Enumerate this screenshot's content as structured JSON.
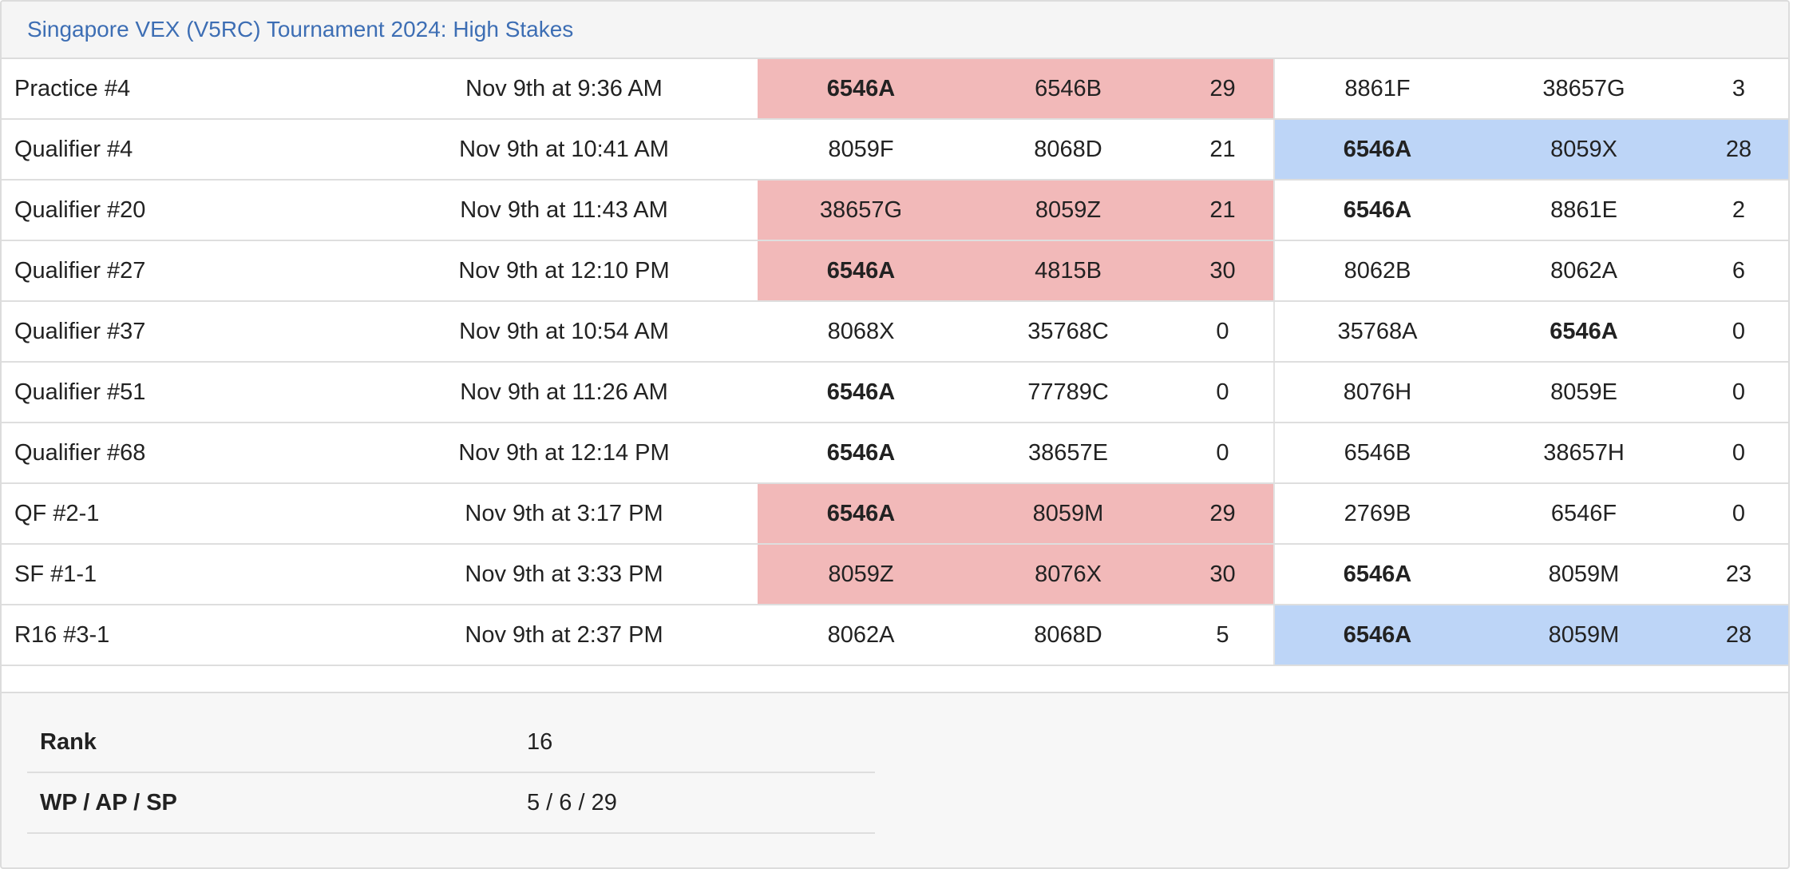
{
  "event": {
    "title": "Singapore VEX (V5RC) Tournament 2024: High Stakes"
  },
  "matches": [
    {
      "name": "Practice #4",
      "time": "Nov 9th at 9:36 AM",
      "red": [
        "6546A",
        "6546B"
      ],
      "red_score": "29",
      "blue": [
        "8861F",
        "38657G"
      ],
      "blue_score": "3",
      "winner": "red"
    },
    {
      "name": "Qualifier #4",
      "time": "Nov 9th at 10:41 AM",
      "red": [
        "8059F",
        "8068D"
      ],
      "red_score": "21",
      "blue": [
        "6546A",
        "8059X"
      ],
      "blue_score": "28",
      "winner": "blue"
    },
    {
      "name": "Qualifier #20",
      "time": "Nov 9th at 11:43 AM",
      "red": [
        "38657G",
        "8059Z"
      ],
      "red_score": "21",
      "blue": [
        "6546A",
        "8861E"
      ],
      "blue_score": "2",
      "winner": "red"
    },
    {
      "name": "Qualifier #27",
      "time": "Nov 9th at 12:10 PM",
      "red": [
        "6546A",
        "4815B"
      ],
      "red_score": "30",
      "blue": [
        "8062B",
        "8062A"
      ],
      "blue_score": "6",
      "winner": "red"
    },
    {
      "name": "Qualifier #37",
      "time": "Nov 9th at 10:54 AM",
      "red": [
        "8068X",
        "35768C"
      ],
      "red_score": "0",
      "blue": [
        "35768A",
        "6546A"
      ],
      "blue_score": "0",
      "winner": "none"
    },
    {
      "name": "Qualifier #51",
      "time": "Nov 9th at 11:26 AM",
      "red": [
        "6546A",
        "77789C"
      ],
      "red_score": "0",
      "blue": [
        "8076H",
        "8059E"
      ],
      "blue_score": "0",
      "winner": "none"
    },
    {
      "name": "Qualifier #68",
      "time": "Nov 9th at 12:14 PM",
      "red": [
        "6546A",
        "38657E"
      ],
      "red_score": "0",
      "blue": [
        "6546B",
        "38657H"
      ],
      "blue_score": "0",
      "winner": "none"
    },
    {
      "name": "QF #2-1",
      "time": "Nov 9th at 3:17 PM",
      "red": [
        "6546A",
        "8059M"
      ],
      "red_score": "29",
      "blue": [
        "2769B",
        "6546F"
      ],
      "blue_score": "0",
      "winner": "red"
    },
    {
      "name": "SF #1-1",
      "time": "Nov 9th at 3:33 PM",
      "red": [
        "8059Z",
        "8076X"
      ],
      "red_score": "30",
      "blue": [
        "6546A",
        "8059M"
      ],
      "blue_score": "23",
      "winner": "red"
    },
    {
      "name": "R16 #3-1",
      "time": "Nov 9th at 2:37 PM",
      "red": [
        "8062A",
        "8068D"
      ],
      "red_score": "5",
      "blue": [
        "6546A",
        "8059M"
      ],
      "blue_score": "28",
      "winner": "blue"
    }
  ],
  "highlight_team": "6546A",
  "stats": [
    {
      "label": "Rank",
      "value": "16"
    },
    {
      "label": "WP / AP / SP",
      "value": "5 / 6 / 29"
    }
  ],
  "colors": {
    "red_alliance_win": "#f2b9b9",
    "blue_alliance_win": "#bdd5f7",
    "title_link": "#3d6eb4"
  }
}
